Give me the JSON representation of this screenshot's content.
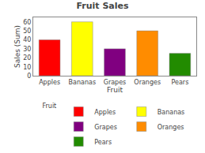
{
  "chart_data": {
    "type": "bar",
    "title": "Fruit Sales",
    "categories": [
      "Apples",
      "Bananas",
      "Grapes",
      "Oranges",
      "Pears"
    ],
    "values": [
      40,
      60,
      30,
      50,
      25
    ],
    "colors": [
      "#ff0000",
      "#ffff00",
      "#800080",
      "#ff8c00",
      "#228b00"
    ],
    "xlabel": "Fruit",
    "ylabel": "Sales (Sum)",
    "ylim": [
      0,
      65
    ],
    "yticks": [
      0,
      10,
      20,
      30,
      40,
      50,
      60
    ],
    "grid": false,
    "legend": "bottom",
    "legend_title": "Fruit"
  }
}
